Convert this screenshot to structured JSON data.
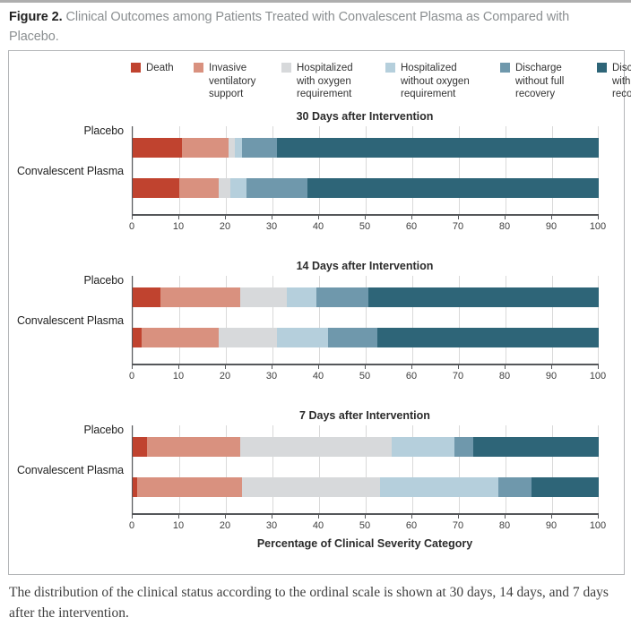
{
  "figure_title": {
    "label": "Figure 2.",
    "text": "Clinical Outcomes among Patients Treated with Convalescent Plasma as Compared with Placebo."
  },
  "caption": "The distribution of the clinical status according to the ordinal scale is shown at 30 days, 14 days, and 7 days after the intervention.",
  "legend": [
    {
      "label": "Death",
      "color": "#c0432f"
    },
    {
      "label": "Invasive ventilatory support",
      "color": "#d9917f"
    },
    {
      "label": "Hospitalized with oxygen requirement",
      "color": "#d7d9db"
    },
    {
      "label": "Hospitalized without oxygen requirement",
      "color": "#b5cfdc"
    },
    {
      "label": "Discharge without full recovery",
      "color": "#6f98ac"
    },
    {
      "label": "Discharge with full recovery",
      "color": "#2e6578"
    }
  ],
  "chart_data": {
    "type": "bar",
    "stacked": true,
    "orientation": "horizontal",
    "grid": true,
    "legend_position": "top",
    "xlabel": "Percentage of Clinical Severity Category",
    "xlim": [
      0,
      100
    ],
    "x_ticks": [
      0,
      10,
      20,
      30,
      40,
      50,
      60,
      70,
      80,
      90,
      100
    ],
    "series_names": [
      "Death",
      "Invasive ventilatory support",
      "Hospitalized with oxygen requirement",
      "Hospitalized without oxygen requirement",
      "Discharge without full recovery",
      "Discharge with full recovery"
    ],
    "colors": [
      "#c0432f",
      "#d9917f",
      "#d7d9db",
      "#b5cfdc",
      "#6f98ac",
      "#2e6578"
    ],
    "panels": [
      {
        "title": "30 Days after Intervention",
        "rows": [
          {
            "label": "Placebo",
            "values": [
              10.5,
              10,
              1.5,
              1.5,
              7.5,
              69
            ]
          },
          {
            "label": "Convalescent Plasma",
            "values": [
              10,
              8.5,
              2.5,
              3.5,
              13,
              62.5
            ]
          }
        ]
      },
      {
        "title": "14 Days after Intervention",
        "rows": [
          {
            "label": "Placebo",
            "values": [
              6,
              17,
              10,
              6.5,
              11,
              49.5
            ]
          },
          {
            "label": "Convalescent Plasma",
            "values": [
              2,
              16.5,
              12.5,
              11,
              10.5,
              47.5
            ]
          }
        ]
      },
      {
        "title": "7 Days after Intervention",
        "rows": [
          {
            "label": "Placebo",
            "values": [
              3,
              20,
              32.5,
              13.5,
              4,
              27
            ]
          },
          {
            "label": "Convalescent Plasma",
            "values": [
              1,
              22.5,
              29.5,
              25.5,
              7,
              14.5
            ]
          }
        ]
      }
    ]
  }
}
